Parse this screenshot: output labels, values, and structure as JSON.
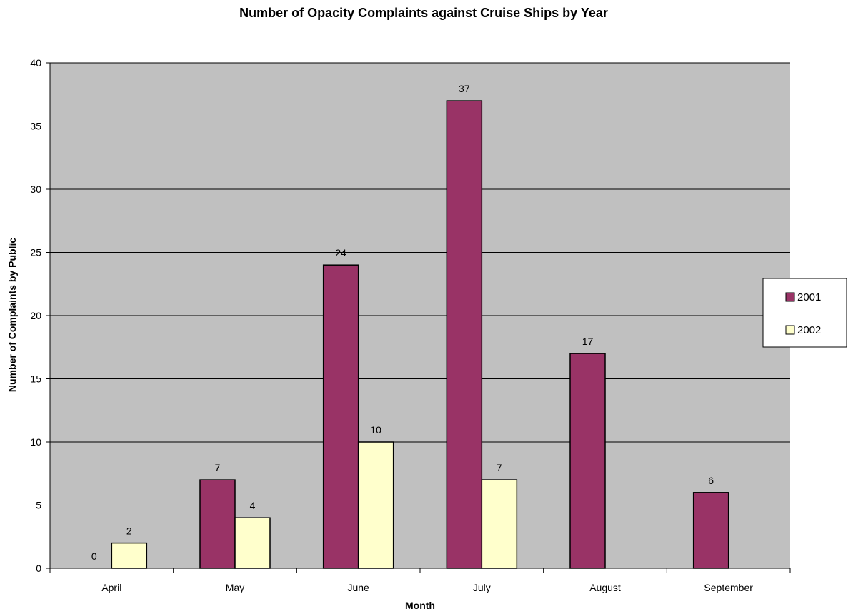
{
  "colors": {
    "plot_background": "#c0c0c0",
    "series_2001": "#993366",
    "series_2002": "#ffffcc",
    "bar_outline": "#000000",
    "gridline": "#000000"
  },
  "chart_data": {
    "type": "bar",
    "title": "Number of Opacity Complaints against Cruise Ships by Year",
    "xlabel": "Month",
    "ylabel": "Number of Complaints by Public",
    "categories": [
      "April",
      "May",
      "June",
      "July",
      "August",
      "September"
    ],
    "series": [
      {
        "name": "2001",
        "values": [
          0,
          7,
          24,
          37,
          17,
          6
        ],
        "labels": [
          "0",
          "7",
          "24",
          "37",
          "17",
          "6"
        ]
      },
      {
        "name": "2002",
        "values": [
          2,
          4,
          10,
          7,
          null,
          null
        ],
        "labels": [
          "2",
          "4",
          "10",
          "7",
          "",
          ""
        ]
      }
    ],
    "ylim": [
      0,
      40
    ],
    "yticks": [
      0,
      5,
      10,
      15,
      20,
      25,
      30,
      35,
      40
    ],
    "grid": true,
    "legend_position": "right"
  }
}
